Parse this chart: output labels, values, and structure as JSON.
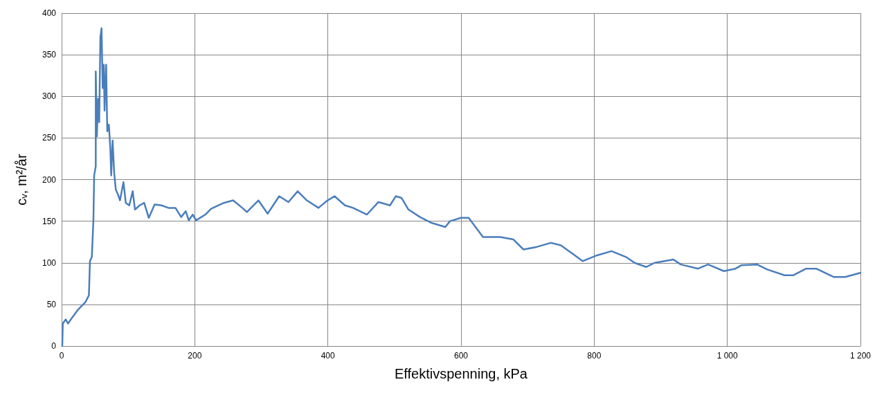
{
  "chart_data": {
    "type": "line",
    "xlabel": "Effektivspenning, kPa",
    "ylabel": "c$_{v}$, m²/år",
    "xlim": [
      0,
      1200
    ],
    "xticks": [
      0,
      200,
      400,
      600,
      800,
      {
        "value": 1000,
        "label": "1 000"
      },
      {
        "value": 1200,
        "label": "1 200"
      }
    ],
    "ylim": [
      0,
      400
    ],
    "yticks": [
      0,
      50,
      100,
      150,
      200,
      250,
      300,
      350,
      400
    ],
    "grid": true,
    "line_style": "solid",
    "series": [
      {
        "color": "#4a7ebb",
        "x": [
          1,
          1.8,
          6.2,
          9.7,
          16.6,
          25,
          36,
          41,
          42.6,
          45.4,
          47.8,
          48.9,
          51.3,
          51.3,
          53,
          54.8,
          56.5,
          58.2,
          60,
          61.7,
          63.4,
          64.5,
          66.9,
          68.6,
          71,
          73.1,
          74.5,
          76.6,
          79,
          81.4,
          84.2,
          87.7,
          92.9,
          96.4,
          101.6,
          106.8,
          110.2,
          117.2,
          124,
          131,
          139.7,
          150,
          160.5,
          171,
          179.6,
          186.4,
          191,
          197,
          202,
          216,
          224.6,
          243.6,
          257.6,
          271.4,
          278.4,
          295.6,
          309.5,
          326.8,
          340.7,
          354.6,
          368.4,
          385.8,
          399.6,
          410,
          425.6,
          437.8,
          458.6,
          476,
          493.2,
          502,
          510.6,
          521,
          538.3,
          555.6,
          576.4,
          583.3,
          599.8,
          611.4,
          633,
          659,
          678.7,
          693.8,
          713.3,
          735,
          750,
          767.4,
          782.6,
          804.3,
          826,
          847.7,
          860.7,
          878,
          890.9,
          919,
          930,
          956,
          971,
          994.9,
          1012.3,
          1020.9,
          1044.7,
          1059.9,
          1085.9,
          1098.9,
          1118.4,
          1133.5,
          1159.6,
          1176.9,
          1200
        ],
        "values": [
          0,
          27,
          32,
          27,
          35,
          44,
          53,
          61,
          102,
          107,
          152,
          205,
          216,
          330,
          252,
          297,
          269,
          371,
          382,
          310,
          338,
          283,
          338,
          258,
          266,
          238,
          205,
          247,
          208,
          188,
          183,
          175,
          197,
          172,
          169,
          186,
          164,
          169,
          172,
          154,
          170,
          169,
          166,
          166,
          155,
          162,
          151,
          158,
          151,
          158,
          165,
          172,
          175,
          166,
          161,
          175,
          159,
          180,
          173,
          186,
          175,
          166,
          175,
          180,
          169,
          166,
          158,
          173,
          169,
          180,
          178,
          164,
          155,
          148,
          143,
          150,
          154,
          154,
          131,
          131,
          128,
          116,
          119,
          124,
          121,
          111,
          102,
          109,
          114,
          107,
          100,
          95,
          100,
          104,
          98,
          93,
          98,
          90,
          93,
          97,
          98,
          92,
          85,
          85,
          93,
          93,
          83,
          83,
          88
        ]
      }
    ]
  }
}
